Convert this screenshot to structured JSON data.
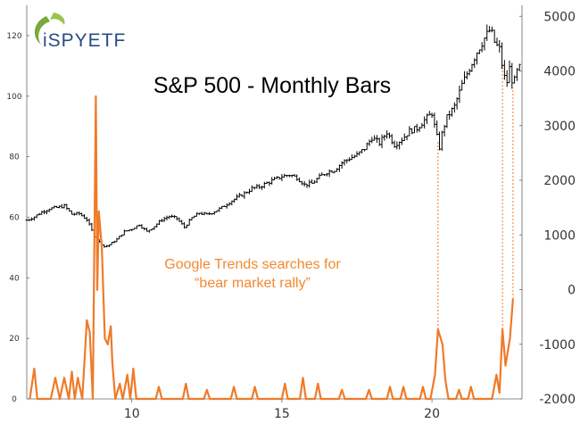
{
  "chart_data": {
    "type": "line",
    "title": "S&P 500 - Monthly Bars",
    "annotation_lines": [
      "Google Trends searches for",
      "“bear market rally”"
    ],
    "logo_text": "iSPYETF",
    "x_tick_labels": [
      "10",
      "15",
      "20"
    ],
    "x_ticks": [
      2010,
      2015,
      2020
    ],
    "xlim": [
      2006.5,
      2023.0
    ],
    "left_axis": {
      "ylim": [
        0,
        130
      ],
      "ticks": [
        0,
        20,
        40,
        60,
        80,
        100,
        120
      ]
    },
    "right_axis": {
      "ylim": [
        -2000,
        5200
      ],
      "ticks": [
        -2000,
        -1000,
        0,
        1000,
        2000,
        3000,
        4000,
        5000
      ]
    },
    "series": [
      {
        "name": "S&P 500",
        "style": "ohlc-bars",
        "axis": "right",
        "color": "#000000",
        "points": [
          [
            2006.5,
            1270
          ],
          [
            2006.75,
            1330
          ],
          [
            2007.0,
            1420
          ],
          [
            2007.25,
            1480
          ],
          [
            2007.5,
            1500
          ],
          [
            2007.75,
            1530
          ],
          [
            2008.0,
            1380
          ],
          [
            2008.25,
            1390
          ],
          [
            2008.5,
            1280
          ],
          [
            2008.75,
            980
          ],
          [
            2008.9,
            880
          ],
          [
            2009.1,
            780
          ],
          [
            2009.25,
            820
          ],
          [
            2009.5,
            920
          ],
          [
            2009.75,
            1060
          ],
          [
            2010.0,
            1110
          ],
          [
            2010.25,
            1190
          ],
          [
            2010.5,
            1060
          ],
          [
            2010.75,
            1160
          ],
          [
            2011.0,
            1280
          ],
          [
            2011.25,
            1340
          ],
          [
            2011.5,
            1300
          ],
          [
            2011.75,
            1140
          ],
          [
            2012.0,
            1310
          ],
          [
            2012.25,
            1400
          ],
          [
            2012.5,
            1370
          ],
          [
            2012.75,
            1430
          ],
          [
            2013.0,
            1500
          ],
          [
            2013.25,
            1600
          ],
          [
            2013.5,
            1680
          ],
          [
            2013.75,
            1760
          ],
          [
            2014.0,
            1850
          ],
          [
            2014.25,
            1880
          ],
          [
            2014.5,
            1950
          ],
          [
            2014.75,
            2010
          ],
          [
            2015.0,
            2070
          ],
          [
            2015.25,
            2100
          ],
          [
            2015.5,
            2050
          ],
          [
            2015.75,
            1920
          ],
          [
            2016.0,
            1940
          ],
          [
            2016.25,
            2060
          ],
          [
            2016.5,
            2150
          ],
          [
            2016.75,
            2190
          ],
          [
            2017.0,
            2320
          ],
          [
            2017.25,
            2400
          ],
          [
            2017.5,
            2460
          ],
          [
            2017.75,
            2580
          ],
          [
            2018.0,
            2780
          ],
          [
            2018.25,
            2680
          ],
          [
            2018.5,
            2880
          ],
          [
            2018.75,
            2650
          ],
          [
            2019.0,
            2750
          ],
          [
            2019.25,
            2900
          ],
          [
            2019.5,
            2950
          ],
          [
            2019.75,
            3100
          ],
          [
            2020.0,
            3230
          ],
          [
            2020.1,
            2950
          ],
          [
            2020.25,
            2600
          ],
          [
            2020.35,
            2900
          ],
          [
            2020.5,
            3150
          ],
          [
            2020.75,
            3350
          ],
          [
            2021.0,
            3750
          ],
          [
            2021.25,
            4050
          ],
          [
            2021.5,
            4350
          ],
          [
            2021.75,
            4600
          ],
          [
            2021.95,
            4766
          ],
          [
            2022.1,
            4500
          ],
          [
            2022.25,
            4400
          ],
          [
            2022.4,
            3900
          ],
          [
            2022.5,
            3800
          ],
          [
            2022.6,
            4100
          ],
          [
            2022.7,
            3700
          ],
          [
            2022.8,
            3950
          ],
          [
            2022.9,
            4050
          ],
          [
            2023.0,
            4100
          ]
        ]
      },
      {
        "name": "Google Trends searches for “bear market rally”",
        "style": "line",
        "axis": "left",
        "color": "#f07a28",
        "points": [
          [
            2006.6,
            0
          ],
          [
            2006.75,
            10
          ],
          [
            2006.85,
            0
          ],
          [
            2007.3,
            0
          ],
          [
            2007.45,
            7
          ],
          [
            2007.6,
            0
          ],
          [
            2007.75,
            7
          ],
          [
            2007.9,
            0
          ],
          [
            2008.0,
            9
          ],
          [
            2008.1,
            0
          ],
          [
            2008.2,
            7
          ],
          [
            2008.35,
            0
          ],
          [
            2008.5,
            26
          ],
          [
            2008.6,
            22
          ],
          [
            2008.7,
            0
          ],
          [
            2008.8,
            100
          ],
          [
            2008.85,
            36
          ],
          [
            2008.9,
            62
          ],
          [
            2009.0,
            50
          ],
          [
            2009.1,
            20
          ],
          [
            2009.2,
            18
          ],
          [
            2009.3,
            24
          ],
          [
            2009.35,
            12
          ],
          [
            2009.45,
            0
          ],
          [
            2009.6,
            5
          ],
          [
            2009.7,
            0
          ],
          [
            2009.85,
            8
          ],
          [
            2009.95,
            0
          ],
          [
            2010.05,
            10
          ],
          [
            2010.15,
            0
          ],
          [
            2010.8,
            0
          ],
          [
            2010.9,
            4
          ],
          [
            2011.0,
            0
          ],
          [
            2011.7,
            0
          ],
          [
            2011.8,
            5
          ],
          [
            2011.9,
            0
          ],
          [
            2012.4,
            0
          ],
          [
            2012.5,
            3
          ],
          [
            2012.6,
            0
          ],
          [
            2013.3,
            0
          ],
          [
            2013.4,
            4
          ],
          [
            2013.5,
            0
          ],
          [
            2014.0,
            0
          ],
          [
            2014.1,
            4
          ],
          [
            2014.2,
            0
          ],
          [
            2015.0,
            0
          ],
          [
            2015.1,
            5
          ],
          [
            2015.2,
            0
          ],
          [
            2015.6,
            0
          ],
          [
            2015.7,
            7
          ],
          [
            2015.8,
            0
          ],
          [
            2016.1,
            0
          ],
          [
            2016.2,
            5
          ],
          [
            2016.3,
            0
          ],
          [
            2016.9,
            0
          ],
          [
            2017.0,
            3
          ],
          [
            2017.1,
            0
          ],
          [
            2017.8,
            0
          ],
          [
            2017.9,
            3
          ],
          [
            2018.0,
            0
          ],
          [
            2018.5,
            0
          ],
          [
            2018.6,
            4
          ],
          [
            2018.7,
            0
          ],
          [
            2018.95,
            0
          ],
          [
            2019.05,
            4
          ],
          [
            2019.15,
            0
          ],
          [
            2019.6,
            0
          ],
          [
            2019.7,
            4
          ],
          [
            2019.8,
            0
          ],
          [
            2019.95,
            0
          ],
          [
            2020.1,
            8
          ],
          [
            2020.2,
            23
          ],
          [
            2020.35,
            18
          ],
          [
            2020.45,
            6
          ],
          [
            2020.55,
            0
          ],
          [
            2020.8,
            0
          ],
          [
            2020.9,
            3
          ],
          [
            2021.0,
            0
          ],
          [
            2021.2,
            0
          ],
          [
            2021.3,
            4
          ],
          [
            2021.4,
            0
          ],
          [
            2022.0,
            0
          ],
          [
            2022.15,
            8
          ],
          [
            2022.25,
            2
          ],
          [
            2022.35,
            23
          ],
          [
            2022.45,
            11
          ],
          [
            2022.6,
            20
          ],
          [
            2022.7,
            33
          ]
        ]
      }
    ],
    "guide_lines": [
      {
        "x": 2020.2,
        "color": "#f07a28",
        "style": "dotted"
      },
      {
        "x": 2022.35,
        "color": "#f07a28",
        "style": "dotted"
      },
      {
        "x": 2022.7,
        "color": "#f07a28",
        "style": "dotted"
      }
    ],
    "grid": false
  }
}
